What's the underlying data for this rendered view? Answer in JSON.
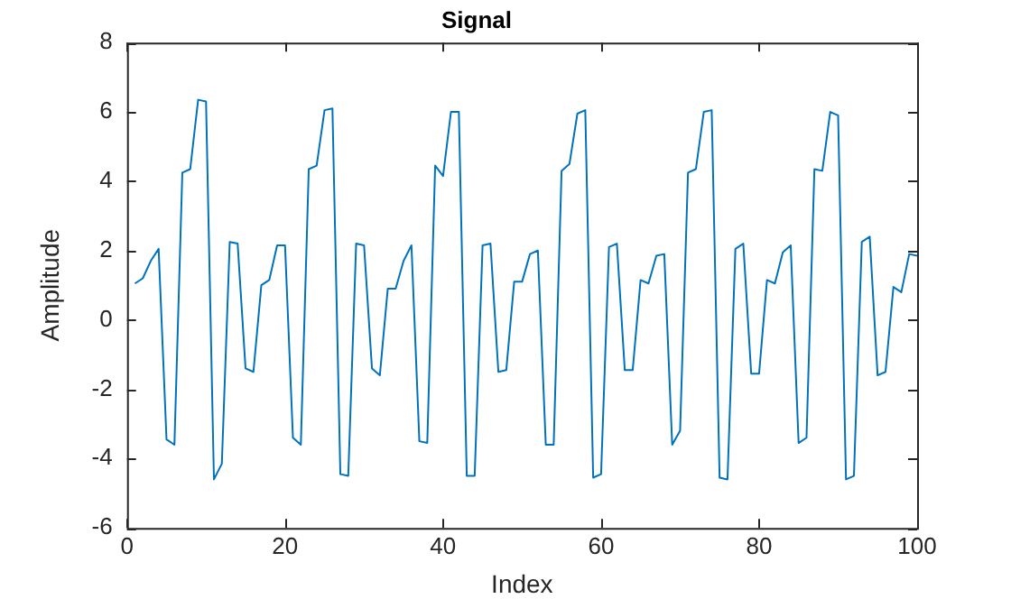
{
  "chart_data": {
    "type": "line",
    "title": "Signal",
    "xlabel": "Index",
    "ylabel": "Amplitude",
    "xlim": [
      0,
      100
    ],
    "xticks": [
      0,
      20,
      40,
      60,
      80,
      100
    ],
    "ylim": [
      -6,
      8
    ],
    "yticks": [
      -6,
      -4,
      -2,
      0,
      2,
      4,
      6,
      8
    ],
    "grid": false,
    "legend": false,
    "marker": "none",
    "line_style": "solid",
    "x": [
      1,
      2,
      3,
      4,
      5,
      6,
      7,
      8,
      9,
      10,
      11,
      12,
      13,
      14,
      15,
      16,
      17,
      18,
      19,
      20,
      21,
      22,
      23,
      24,
      25,
      26,
      27,
      28,
      29,
      30,
      31,
      32,
      33,
      34,
      35,
      36,
      37,
      38,
      39,
      40,
      41,
      42,
      43,
      44,
      45,
      46,
      47,
      48,
      49,
      50,
      51,
      52,
      53,
      54,
      55,
      56,
      57,
      58,
      59,
      60,
      61,
      62,
      63,
      64,
      65,
      66,
      67,
      68,
      69,
      70,
      71,
      72,
      73,
      74,
      75,
      76,
      77,
      78,
      79,
      80,
      81,
      82,
      83,
      84,
      85,
      86,
      87,
      88,
      89,
      90,
      91,
      92,
      93,
      94,
      95,
      96,
      97,
      98,
      99,
      100
    ],
    "series": [
      {
        "color": "#0072bd",
        "values": [
          1.05,
          1.2,
          1.7,
          2.05,
          -3.45,
          -3.6,
          4.25,
          4.35,
          6.35,
          6.3,
          -4.6,
          -4.15,
          2.25,
          2.2,
          -1.4,
          -1.5,
          1.0,
          1.15,
          2.15,
          2.15,
          -3.4,
          -3.6,
          4.35,
          4.45,
          6.05,
          6.1,
          -4.45,
          -4.5,
          2.2,
          2.15,
          -1.4,
          -1.6,
          0.9,
          0.9,
          1.7,
          2.15,
          -3.5,
          -3.55,
          4.45,
          4.15,
          6.0,
          6.0,
          -4.5,
          -4.5,
          2.15,
          2.2,
          -1.5,
          -1.45,
          1.1,
          1.1,
          1.9,
          2.0,
          -3.6,
          -3.6,
          4.3,
          4.5,
          5.95,
          6.05,
          -4.55,
          -4.45,
          2.1,
          2.2,
          -1.45,
          -1.45,
          1.15,
          1.05,
          1.85,
          1.9,
          -3.6,
          -3.2,
          4.25,
          4.35,
          6.0,
          6.05,
          -4.55,
          -4.6,
          2.05,
          2.2,
          -1.55,
          -1.55,
          1.15,
          1.05,
          1.95,
          2.15,
          -3.55,
          -3.4,
          4.35,
          4.3,
          6.0,
          5.9,
          -4.6,
          -4.5,
          2.25,
          2.4,
          -1.6,
          -1.5,
          0.95,
          0.8,
          1.9,
          1.85
        ]
      }
    ]
  }
}
